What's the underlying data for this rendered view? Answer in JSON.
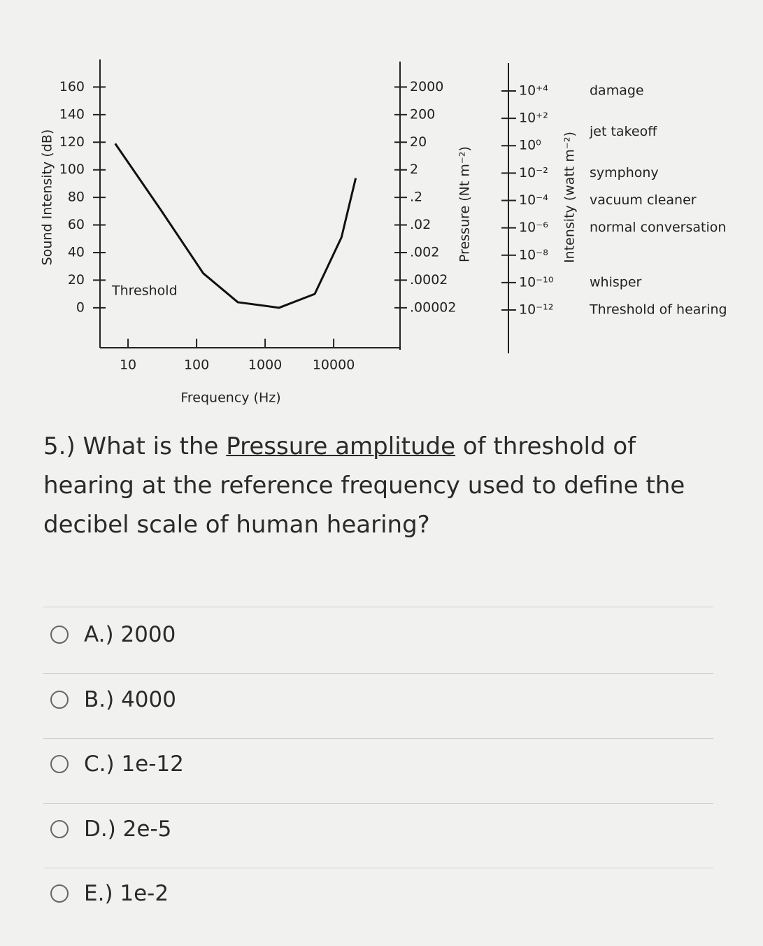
{
  "chart_data": {
    "type": "line",
    "ylabel": "Sound Intensity (dB)",
    "xlabel": "Frequency (Hz)",
    "annotation": "Threshold",
    "x": [
      6.5,
      30,
      125,
      400,
      1600,
      5300,
      13000,
      21000
    ],
    "values": [
      119,
      71,
      25,
      4,
      0,
      10,
      51,
      94
    ],
    "color": "#111111",
    "xlim": [
      3.9,
      93000
    ],
    "xlog": true,
    "xticks": [
      10,
      100,
      1000,
      10000
    ],
    "ylim": [
      -29,
      180
    ],
    "yticks": [
      0,
      20,
      40,
      60,
      80,
      100,
      120,
      140,
      160
    ],
    "y2label": "Pressure (Nt m⁻²)",
    "y2lim": [
      7.1e-07,
      20000
    ],
    "y2log": true,
    "y2ticks": [
      2000,
      200,
      20,
      2,
      {
        "value": 0.2,
        "label": ".2"
      },
      {
        "value": 0.02,
        "label": ".02"
      },
      {
        "value": 0.002,
        "label": ".002"
      },
      {
        "value": 0.0002,
        "label": ".0002"
      },
      {
        "value": 2e-05,
        "label": ".00002"
      }
    ],
    "y3label": "Intensity (watt m⁻²)",
    "y3lim": [
      6.8e-16,
      1100000
    ],
    "y3log": true,
    "y3ticks": [
      {
        "value": 10000,
        "label": "10⁺⁴"
      },
      {
        "value": 100,
        "label": "10⁺²"
      },
      {
        "value": 1,
        "label": "10⁰"
      },
      {
        "value": 0.01,
        "label": "10⁻²"
      },
      {
        "value": 0.0001,
        "label": "10⁻⁴"
      },
      {
        "value": 1e-06,
        "label": "10⁻⁶"
      },
      {
        "value": 1e-08,
        "label": "10⁻⁸"
      },
      {
        "value": 1e-10,
        "label": "10⁻¹⁰"
      },
      {
        "value": 1e-12,
        "label": "10⁻¹²"
      }
    ],
    "sources": [
      {
        "label": "damage",
        "intensity": 10000
      },
      {
        "label": "jet takeoff",
        "intensity": 10
      },
      {
        "label": "symphony",
        "intensity": 0.01
      },
      {
        "label": "vacuum cleaner",
        "intensity": 0.0001
      },
      {
        "label": "normal conversation",
        "intensity": 1e-06
      },
      {
        "label": "whisper",
        "intensity": 1e-10
      },
      {
        "label": "Threshold of hearing",
        "intensity": 1e-12
      }
    ]
  },
  "question": {
    "before": "5.) What is the ",
    "emphasis": "Pressure amplitude",
    "after": " of threshold of hearing at the reference frequency used to define the decibel scale of human hearing?"
  },
  "options": [
    "A.) 2000",
    "B.) 4000",
    "C.) 1e-12",
    "D.) 2e-5",
    "E.) 1e-2"
  ]
}
